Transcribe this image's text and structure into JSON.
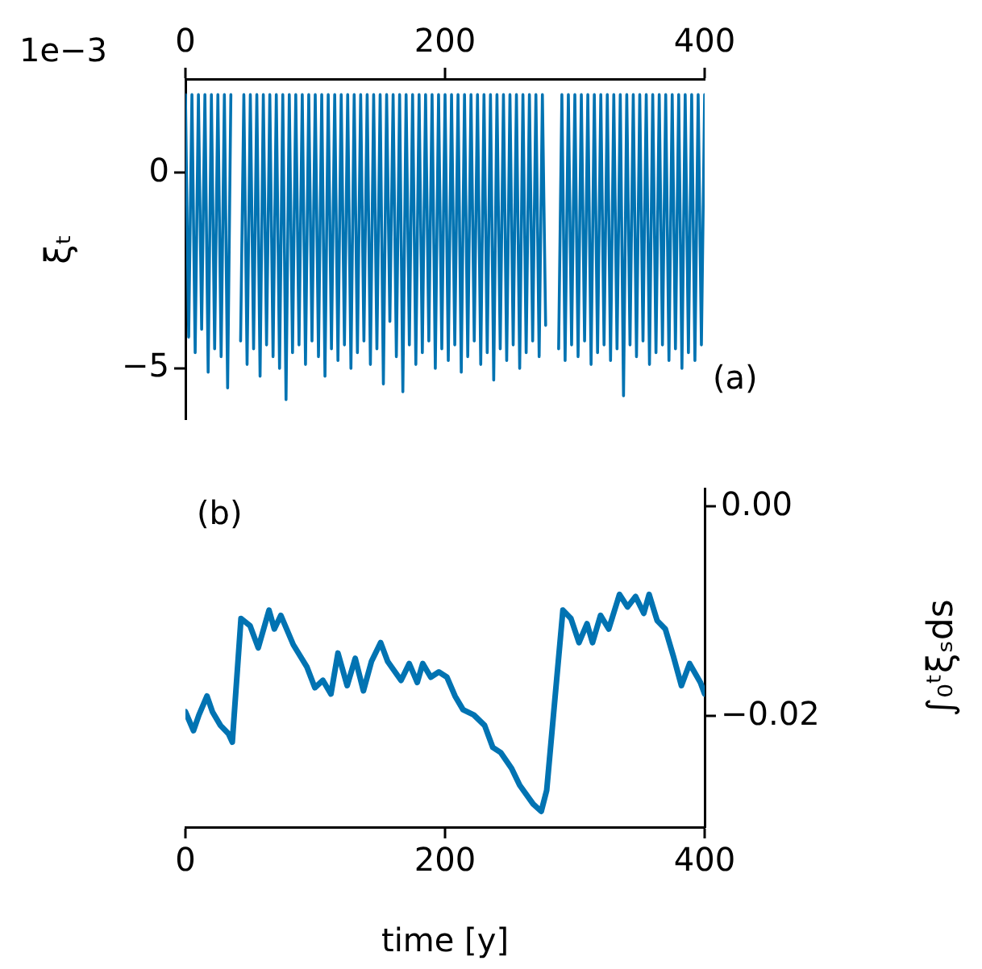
{
  "chart_data": [
    {
      "type": "line",
      "ylabel": "ξₜ",
      "annotations": [
        "1e−3",
        "(a)"
      ],
      "color": "#0173b2",
      "marker": "none",
      "xlim": [
        0,
        400
      ],
      "xticks": [
        0,
        200,
        400
      ],
      "ylim": [
        -6.3,
        2.4
      ],
      "yticks": [
        {
          "value": -5,
          "label": "−5"
        },
        0
      ],
      "x": [
        0,
        2.5,
        5,
        7.5,
        10,
        12.5,
        15,
        17.5,
        20,
        22.5,
        25,
        27.5,
        30,
        32.5,
        35,
        37.5,
        40,
        42.5,
        45,
        47.5,
        50,
        52.5,
        55,
        57.5,
        60,
        62.5,
        65,
        67.5,
        70,
        72.5,
        75,
        77.5,
        80,
        82.5,
        85,
        87.5,
        90,
        92.5,
        95,
        97.5,
        100,
        102.5,
        105,
        107.5,
        110,
        112.5,
        115,
        117.5,
        120,
        122.5,
        125,
        127.5,
        130,
        132.5,
        135,
        137.5,
        140,
        142.5,
        145,
        147.5,
        150,
        152.5,
        155,
        157.5,
        160,
        162.5,
        165,
        167.5,
        170,
        172.5,
        175,
        177.5,
        180,
        182.5,
        185,
        187.5,
        190,
        192.5,
        195,
        197.5,
        200,
        202.5,
        205,
        207.5,
        210,
        212.5,
        215,
        217.5,
        220,
        222.5,
        225,
        227.5,
        230,
        232.5,
        235,
        237.5,
        240,
        242.5,
        245,
        247.5,
        250,
        252.5,
        255,
        257.5,
        260,
        262.5,
        265,
        267.5,
        270,
        272.5,
        275,
        277.5,
        280,
        282.5,
        285,
        287.5,
        290,
        292.5,
        295,
        297.5,
        300,
        302.5,
        305,
        307.5,
        310,
        312.5,
        315,
        317.5,
        320,
        322.5,
        325,
        327.5,
        330,
        332.5,
        335,
        337.5,
        340,
        342.5,
        345,
        347.5,
        350,
        352.5,
        355,
        357.5,
        360,
        362.5,
        365,
        367.5,
        370,
        372.5,
        375,
        377.5,
        380,
        382.5,
        385,
        387.5,
        390,
        392.5,
        395,
        397.5,
        400
      ],
      "values": [
        2,
        -4.2,
        2,
        -4.6,
        2,
        -4,
        2,
        -5.1,
        2,
        -4.5,
        2,
        -4.7,
        2,
        -5.5,
        2,
        null,
        null,
        -4.3,
        2,
        -4.9,
        2,
        -4.5,
        2,
        -5.2,
        2,
        -4.4,
        2,
        -4.7,
        2,
        -5,
        2,
        -5.8,
        2,
        -4.6,
        2,
        -4.4,
        2,
        -4.9,
        2,
        -4.3,
        2,
        -4.7,
        2,
        -5.2,
        2,
        -4.5,
        2,
        -4.8,
        2,
        -4.4,
        2,
        -5,
        2,
        -4.6,
        2,
        -4.3,
        2,
        -4.9,
        2,
        -4.5,
        2,
        -5.4,
        2,
        -3.8,
        2,
        -4.7,
        2,
        -5.6,
        2,
        -4.4,
        2,
        -4.9,
        2,
        -4.6,
        2,
        -4.3,
        2,
        -5,
        2,
        -4.5,
        2,
        -4.8,
        2,
        -4.4,
        2,
        -5.1,
        2,
        -4.7,
        2,
        -4.3,
        2,
        -4.9,
        2,
        -4.6,
        2,
        -5.3,
        2,
        -4.5,
        2,
        -4.8,
        2,
        -4.4,
        2,
        -5,
        2,
        -4.6,
        2,
        -4.3,
        2,
        -4.7,
        2,
        -3.9,
        null,
        null,
        null,
        -4.5,
        2,
        -4.8,
        2,
        -4.4,
        2,
        -4.7,
        2,
        -4.3,
        2,
        -4.9,
        2,
        -4.6,
        2,
        -4.4,
        2,
        -4.8,
        2,
        -4.5,
        2,
        -5.7,
        2,
        -4.4,
        2,
        -4.7,
        2,
        -4.3,
        2,
        -4.9,
        2,
        -4.6,
        2,
        -4.4,
        2,
        -4.8,
        2,
        -4.5,
        2,
        -5,
        2,
        -4.6,
        2,
        -4.8,
        2,
        -4.4,
        2
      ]
    },
    {
      "type": "line",
      "xlabel": "time [y]",
      "ylabel": "∫₀ᵗξₛds",
      "annotations": [
        "(b)"
      ],
      "color": "#0173b2",
      "marker": "none",
      "xlim": [
        0,
        400
      ],
      "xticks": [
        0,
        200,
        400
      ],
      "ylim": [
        -0.0306,
        0.0017
      ],
      "yticks": [
        {
          "value": 0,
          "label": "0.00"
        },
        {
          "value": -0.02,
          "label": "−0.02"
        }
      ],
      "x": [
        0,
        6.2,
        10.4,
        16.6,
        20.8,
        27,
        33.2,
        36.1,
        42.8,
        49.8,
        56.1,
        64.4,
        68.5,
        73.5,
        83.1,
        93.5,
        99.7,
        105.9,
        112.1,
        117.5,
        124.6,
        130.8,
        137.1,
        143.3,
        150.4,
        155.8,
        166.1,
        172.4,
        178.6,
        182.8,
        189,
        195.2,
        201.5,
        207.7,
        213.9,
        222.2,
        230.5,
        236.8,
        243,
        251.3,
        257.5,
        267.9,
        274.1,
        278.3,
        290.8,
        297,
        303.2,
        309.4,
        313.6,
        319.8,
        326.1,
        334.4,
        340.6,
        346.8,
        353.1,
        357.2,
        363.4,
        369.7,
        375.9,
        382.1,
        388.4,
        396.7,
        400
      ],
      "values": [
        -0.0196,
        -0.0214,
        -0.0199,
        -0.0181,
        -0.0196,
        -0.0209,
        -0.0217,
        -0.0225,
        -0.0107,
        -0.0114,
        -0.0135,
        -0.0099,
        -0.0117,
        -0.0104,
        -0.0132,
        -0.0153,
        -0.0173,
        -0.0166,
        -0.0179,
        -0.014,
        -0.0171,
        -0.0145,
        -0.0176,
        -0.0148,
        -0.013,
        -0.0148,
        -0.0166,
        -0.015,
        -0.0168,
        -0.015,
        -0.0163,
        -0.0158,
        -0.0163,
        -0.0181,
        -0.0194,
        -0.0199,
        -0.0209,
        -0.023,
        -0.0235,
        -0.025,
        -0.0266,
        -0.0284,
        -0.0291,
        -0.0271,
        -0.0099,
        -0.0107,
        -0.013,
        -0.0112,
        -0.013,
        -0.0104,
        -0.0117,
        -0.0084,
        -0.0096,
        -0.0086,
        -0.0102,
        -0.0084,
        -0.0109,
        -0.0117,
        -0.0143,
        -0.0171,
        -0.015,
        -0.0168,
        -0.0179
      ]
    }
  ]
}
